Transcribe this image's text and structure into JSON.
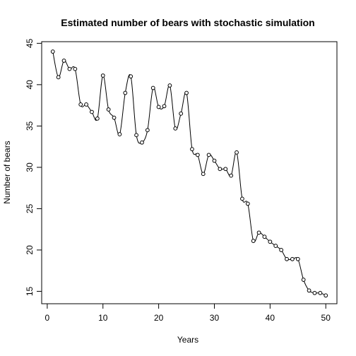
{
  "chart_data": {
    "type": "line",
    "title": "Estimated number of bears with stochastic simulation",
    "xlabel": "Years",
    "ylabel": "Number of bears",
    "xlim": [
      -1,
      52
    ],
    "ylim": [
      13.5,
      45.2
    ],
    "x_ticks": [
      0,
      10,
      20,
      30,
      40,
      50
    ],
    "y_ticks": [
      15,
      20,
      25,
      30,
      35,
      40,
      45
    ],
    "grid": false,
    "legend": "none",
    "line_style": "smoothed line with open circle markers",
    "series": [
      {
        "x": [
          1,
          2,
          3,
          4,
          5,
          6,
          7,
          8,
          9,
          10,
          11,
          12,
          13,
          14,
          15,
          16,
          17,
          18,
          19,
          20,
          21,
          22,
          23,
          24,
          25,
          26,
          27,
          28,
          29,
          30,
          31,
          32,
          33,
          34,
          35,
          36,
          37,
          38,
          39,
          40,
          41,
          42,
          43,
          44,
          45,
          46,
          47,
          48,
          49,
          50
        ],
        "values": [
          44.0,
          40.9,
          42.9,
          41.9,
          41.9,
          37.6,
          37.6,
          36.7,
          35.9,
          41.1,
          37.0,
          36.0,
          34.0,
          39.0,
          41.0,
          33.9,
          33.0,
          34.5,
          39.6,
          37.3,
          37.4,
          39.9,
          34.7,
          36.5,
          39.0,
          32.2,
          31.5,
          29.2,
          31.5,
          30.8,
          29.8,
          29.8,
          29.0,
          31.8,
          26.2,
          25.6,
          21.1,
          22.1,
          21.6,
          21.0,
          20.5,
          20.0,
          18.9,
          18.9,
          18.9,
          16.4,
          15.1,
          14.8,
          14.8,
          14.5
        ]
      }
    ]
  }
}
